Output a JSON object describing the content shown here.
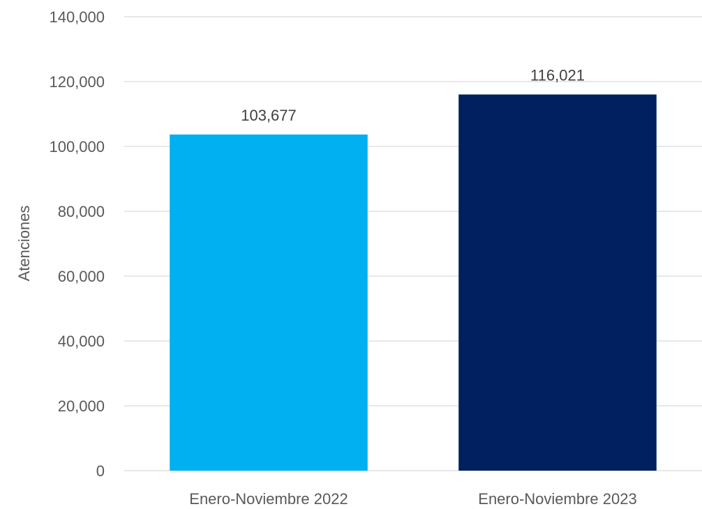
{
  "chart_data": {
    "type": "bar",
    "categories": [
      "Enero-Noviembre 2022",
      "Enero-Noviembre 2023"
    ],
    "series": [
      {
        "values": [
          103677,
          116021
        ],
        "data_labels": [
          "103,677",
          "116,021"
        ],
        "colors": [
          "#00B0F0",
          "#002060"
        ]
      }
    ],
    "title": "",
    "xlabel": "",
    "ylabel": "Atenciones",
    "ylim": [
      0,
      140000
    ],
    "yticks": [
      0,
      20000,
      40000,
      60000,
      80000,
      100000,
      120000,
      140000
    ],
    "ytick_labels": [
      "0",
      "20,000",
      "40,000",
      "60,000",
      "80,000",
      "100,000",
      "120,000",
      "140,000"
    ],
    "grid": true,
    "legend": "none"
  }
}
